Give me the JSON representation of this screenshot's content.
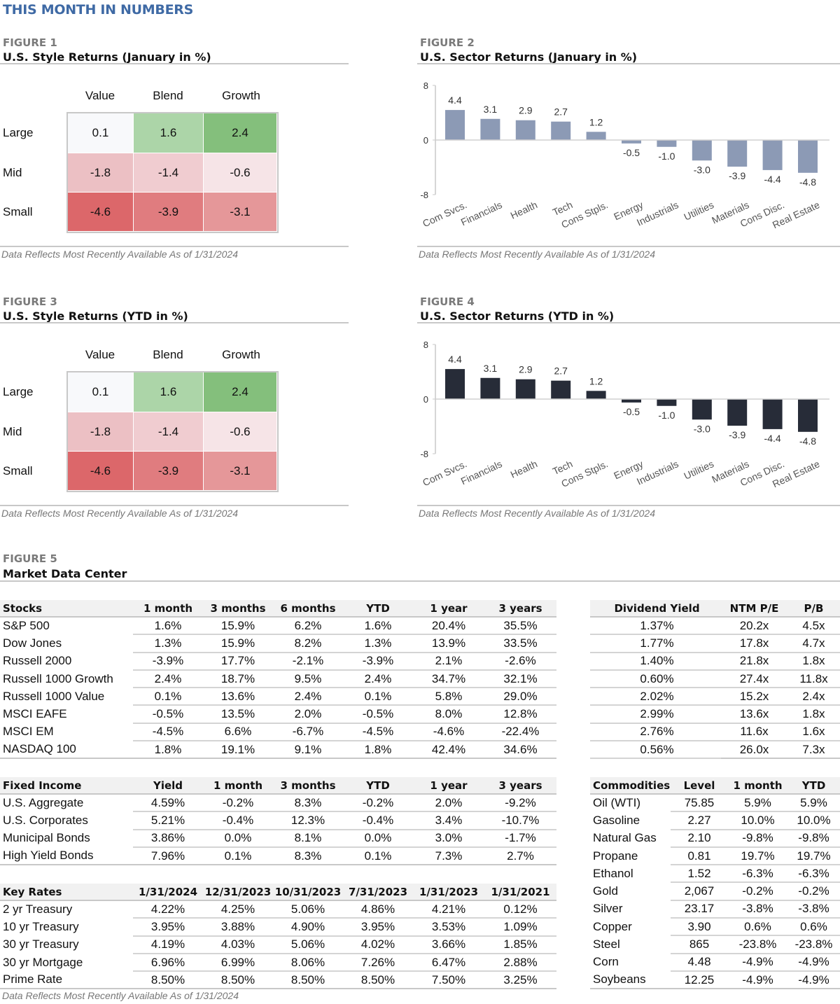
{
  "header": {
    "title": "THIS MONTH IN NUMBERS"
  },
  "footnote": "Data Reflects Most Recently Available As of 1/31/2024",
  "heatmaps": [
    {
      "label": "FIGURE 1",
      "title": "U.S. Style Returns (January in %)",
      "columns": [
        "Value",
        "Blend",
        "Growth"
      ],
      "rows": [
        "Large",
        "Mid",
        "Small"
      ],
      "values": [
        [
          "0.1",
          "1.6",
          "2.4"
        ],
        [
          "-1.8",
          "-1.4",
          "-0.6"
        ],
        [
          "-4.6",
          "-3.9",
          "-3.1"
        ]
      ],
      "colors": [
        [
          "#f8f9fb",
          "#acd5a8",
          "#84bf7c"
        ],
        [
          "#ecc0c4",
          "#f0ccd0",
          "#f6e4e7"
        ],
        [
          "#dc676a",
          "#e07c7f",
          "#e59799"
        ]
      ]
    },
    {
      "label": "FIGURE 3",
      "title": "U.S. Style Returns (YTD in %)",
      "columns": [
        "Value",
        "Blend",
        "Growth"
      ],
      "rows": [
        "Large",
        "Mid",
        "Small"
      ],
      "values": [
        [
          "0.1",
          "1.6",
          "2.4"
        ],
        [
          "-1.8",
          "-1.4",
          "-0.6"
        ],
        [
          "-4.6",
          "-3.9",
          "-3.1"
        ]
      ],
      "colors": [
        [
          "#f8f9fb",
          "#acd5a8",
          "#84bf7c"
        ],
        [
          "#ecc0c4",
          "#f0ccd0",
          "#f6e4e7"
        ],
        [
          "#dc676a",
          "#e07c7f",
          "#e59799"
        ]
      ]
    }
  ],
  "chart_data": [
    {
      "type": "bar",
      "label": "FIGURE 2",
      "title": "U.S. Sector Returns (January in %)",
      "color": "#8c9ab5",
      "categories": [
        "Com Svcs.",
        "Financials",
        "Health",
        "Tech",
        "Cons Stpls.",
        "Energy",
        "Industrials",
        "Utilities",
        "Materials",
        "Cons Disc.",
        "Real Estate"
      ],
      "values": [
        4.4,
        3.1,
        2.9,
        2.7,
        1.2,
        -0.5,
        -1.0,
        -3.0,
        -3.9,
        -4.4,
        -4.8
      ],
      "data_labels": [
        "4.4",
        "3.1",
        "2.9",
        "2.7",
        "1.2",
        "-0.5",
        "-1.0",
        "-3.0",
        "-3.9",
        "-4.4",
        "-4.8"
      ],
      "yticks": [
        "8",
        "0",
        "-8"
      ],
      "ylim": [
        -8,
        8
      ],
      "grid": false
    },
    {
      "type": "bar",
      "label": "FIGURE 4",
      "title": "U.S. Sector Returns (YTD in %)",
      "color": "#272c38",
      "categories": [
        "Com Svcs.",
        "Financials",
        "Health",
        "Tech",
        "Cons Stpls.",
        "Energy",
        "Industrials",
        "Utilities",
        "Materials",
        "Cons Disc.",
        "Real Estate"
      ],
      "values": [
        4.4,
        3.1,
        2.9,
        2.7,
        1.2,
        -0.5,
        -1.0,
        -3.0,
        -3.9,
        -4.4,
        -4.8
      ],
      "data_labels": [
        "4.4",
        "3.1",
        "2.9",
        "2.7",
        "1.2",
        "-0.5",
        "-1.0",
        "-3.0",
        "-3.9",
        "-4.4",
        "-4.8"
      ],
      "yticks": [
        "8",
        "0",
        "-8"
      ],
      "ylim": [
        -8,
        8
      ],
      "grid": false
    }
  ],
  "figure5": {
    "label": "FIGURE 5",
    "title": "Market Data Center"
  },
  "tables": {
    "stocks": {
      "headers": [
        "Stocks",
        "1 month",
        "3 months",
        "6 months",
        "YTD",
        "1 year",
        "3 years"
      ],
      "rows": [
        [
          "S&P 500",
          "1.6%",
          "15.9%",
          "6.2%",
          "1.6%",
          "20.4%",
          "35.5%"
        ],
        [
          "Dow Jones",
          "1.3%",
          "15.9%",
          "8.2%",
          "1.3%",
          "13.9%",
          "33.5%"
        ],
        [
          "Russell 2000",
          "-3.9%",
          "17.7%",
          "-2.1%",
          "-3.9%",
          "2.1%",
          "-2.6%"
        ],
        [
          "Russell 1000 Growth",
          "2.4%",
          "18.7%",
          "9.5%",
          "2.4%",
          "34.7%",
          "32.1%"
        ],
        [
          "Russell 1000 Value",
          "0.1%",
          "13.6%",
          "2.4%",
          "0.1%",
          "5.8%",
          "29.0%"
        ],
        [
          "MSCI EAFE",
          "-0.5%",
          "13.5%",
          "2.0%",
          "-0.5%",
          "8.0%",
          "12.8%"
        ],
        [
          "MSCI EM",
          "-4.5%",
          "6.6%",
          "-6.7%",
          "-4.5%",
          "-4.6%",
          "-22.4%"
        ],
        [
          "NASDAQ 100",
          "1.8%",
          "19.1%",
          "9.1%",
          "1.8%",
          "42.4%",
          "34.6%"
        ]
      ]
    },
    "valuation": {
      "headers": [
        "Dividend Yield",
        "NTM P/E",
        "P/B"
      ],
      "rows": [
        [
          "1.37%",
          "20.2x",
          "4.5x"
        ],
        [
          "1.77%",
          "17.8x",
          "4.7x"
        ],
        [
          "1.40%",
          "21.8x",
          "1.8x"
        ],
        [
          "0.60%",
          "27.4x",
          "11.8x"
        ],
        [
          "2.02%",
          "15.2x",
          "2.4x"
        ],
        [
          "2.99%",
          "13.6x",
          "1.8x"
        ],
        [
          "2.76%",
          "11.6x",
          "1.6x"
        ],
        [
          "0.56%",
          "26.0x",
          "7.3x"
        ]
      ]
    },
    "fixed_income": {
      "headers": [
        "Fixed Income",
        "Yield",
        "1 month",
        "3 months",
        "YTD",
        "1 year",
        "3 years"
      ],
      "rows": [
        [
          "U.S. Aggregate",
          "4.59%",
          "-0.2%",
          "8.3%",
          "-0.2%",
          "2.0%",
          "-9.2%"
        ],
        [
          "U.S. Corporates",
          "5.21%",
          "-0.4%",
          "12.3%",
          "-0.4%",
          "3.4%",
          "-10.7%"
        ],
        [
          "Municipal Bonds",
          "3.86%",
          "0.0%",
          "8.1%",
          "0.0%",
          "3.0%",
          "-1.7%"
        ],
        [
          "High Yield Bonds",
          "7.96%",
          "0.1%",
          "8.3%",
          "0.1%",
          "7.3%",
          "2.7%"
        ]
      ]
    },
    "key_rates": {
      "headers": [
        "Key Rates",
        "1/31/2024",
        "12/31/2023",
        "10/31/2023",
        "7/31/2023",
        "1/31/2023",
        "1/31/2021"
      ],
      "rows": [
        [
          "2 yr Treasury",
          "4.22%",
          "4.25%",
          "5.06%",
          "4.86%",
          "4.21%",
          "0.12%"
        ],
        [
          "10 yr Treasury",
          "3.95%",
          "3.88%",
          "4.90%",
          "3.95%",
          "3.53%",
          "1.09%"
        ],
        [
          "30 yr Treasury",
          "4.19%",
          "4.03%",
          "5.06%",
          "4.02%",
          "3.66%",
          "1.85%"
        ],
        [
          "30 yr Mortgage",
          "6.96%",
          "6.99%",
          "8.06%",
          "7.26%",
          "6.47%",
          "2.88%"
        ],
        [
          "Prime Rate",
          "8.50%",
          "8.50%",
          "8.50%",
          "8.50%",
          "7.50%",
          "3.25%"
        ]
      ]
    },
    "commodities": {
      "headers": [
        "Commodities",
        "Level",
        "1 month",
        "YTD"
      ],
      "rows": [
        [
          "Oil (WTI)",
          "75.85",
          "5.9%",
          "5.9%"
        ],
        [
          "Gasoline",
          "2.27",
          "10.0%",
          "10.0%"
        ],
        [
          "Natural Gas",
          "2.10",
          "-9.8%",
          "-9.8%"
        ],
        [
          "Propane",
          "0.81",
          "19.7%",
          "19.7%"
        ],
        [
          "Ethanol",
          "1.52",
          "-6.3%",
          "-6.3%"
        ],
        [
          "Gold",
          "2,067",
          "-0.2%",
          "-0.2%"
        ],
        [
          "Silver",
          "23.17",
          "-3.8%",
          "-3.8%"
        ],
        [
          "Copper",
          "3.90",
          "0.6%",
          "0.6%"
        ],
        [
          "Steel",
          "865",
          "-23.8%",
          "-23.8%"
        ],
        [
          "Corn",
          "4.48",
          "-4.9%",
          "-4.9%"
        ],
        [
          "Soybeans",
          "12.25",
          "-4.9%",
          "-4.9%"
        ]
      ]
    }
  }
}
